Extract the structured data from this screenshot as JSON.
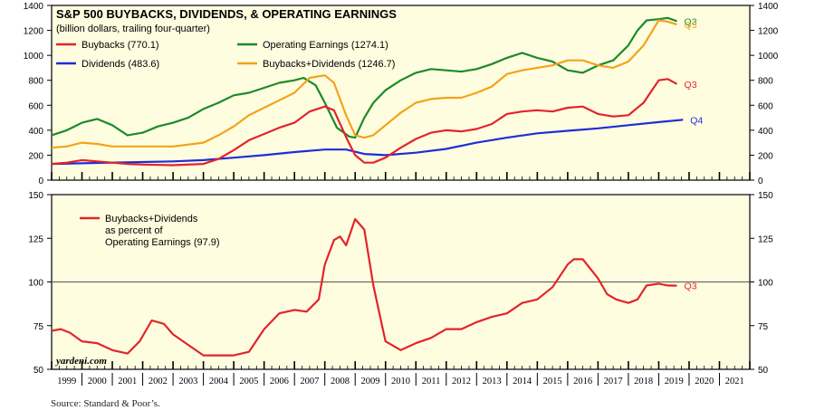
{
  "colors": {
    "panel_bg": "#fffde0",
    "buybacks": "#e3242b",
    "dividends": "#1f2dd6",
    "earnings": "#1c8a2a",
    "combined": "#f2a31b",
    "ratio": "#e3242b"
  },
  "source": "Source: Standard & Poor’s.",
  "chart_data": [
    {
      "type": "line",
      "title": "S&P 500 BUYBACKS, DIVIDENDS, & OPERATING EARNINGS",
      "subtitle": "(billion dollars, trailing four-quarter)",
      "ylim": [
        0,
        1400
      ],
      "yticks": [
        0,
        200,
        400,
        600,
        800,
        1000,
        1200,
        1400
      ],
      "x_range": [
        1999,
        2022
      ],
      "legend_position": "top-left",
      "series": [
        {
          "name": "Buybacks (770.1)",
          "key": "buybacks",
          "end_label": "Q3",
          "x": [
            1999,
            1999.5,
            2000,
            2000.5,
            2001,
            2001.5,
            2002,
            2003,
            2004,
            2004.5,
            2005,
            2005.5,
            2006,
            2006.5,
            2007,
            2007.5,
            2008,
            2008.3,
            2008.75,
            2009,
            2009.3,
            2009.6,
            2010,
            2010.5,
            2011,
            2011.5,
            2012,
            2012.5,
            2013,
            2013.5,
            2014,
            2014.5,
            2015,
            2015.5,
            2016,
            2016.5,
            2017,
            2017.5,
            2018,
            2018.5,
            2019,
            2019.3,
            2019.6
          ],
          "y": [
            130,
            140,
            160,
            150,
            140,
            130,
            125,
            120,
            130,
            170,
            240,
            320,
            370,
            420,
            460,
            550,
            590,
            560,
            320,
            200,
            140,
            140,
            180,
            260,
            330,
            380,
            400,
            390,
            410,
            450,
            530,
            550,
            560,
            550,
            580,
            590,
            530,
            510,
            520,
            620,
            800,
            810,
            770
          ]
        },
        {
          "name": "Dividends (483.6)",
          "key": "dividends",
          "end_label": "Q4",
          "x": [
            1999,
            2000,
            2001,
            2002,
            2003,
            2004,
            2005,
            2006,
            2007,
            2008,
            2008.7,
            2009.3,
            2010,
            2011,
            2012,
            2013,
            2014,
            2015,
            2016,
            2017,
            2018,
            2019,
            2019.8
          ],
          "y": [
            130,
            135,
            140,
            145,
            150,
            160,
            180,
            200,
            225,
            245,
            245,
            210,
            200,
            220,
            250,
            300,
            340,
            375,
            395,
            415,
            440,
            465,
            484
          ]
        },
        {
          "name": "Operating Earnings (1274.1)",
          "key": "earnings",
          "end_label": "Q3",
          "x": [
            1999,
            1999.5,
            2000,
            2000.5,
            2001,
            2001.5,
            2002,
            2002.5,
            2003,
            2003.5,
            2004,
            2004.5,
            2005,
            2005.5,
            2006,
            2006.5,
            2007,
            2007.3,
            2007.7,
            2008,
            2008.4,
            2008.8,
            2009,
            2009.3,
            2009.6,
            2010,
            2010.5,
            2011,
            2011.5,
            2012,
            2012.5,
            2013,
            2013.5,
            2014,
            2014.5,
            2015,
            2015.5,
            2016,
            2016.5,
            2017,
            2017.5,
            2018,
            2018.3,
            2018.6,
            2019,
            2019.3,
            2019.6
          ],
          "y": [
            360,
            400,
            460,
            490,
            440,
            360,
            380,
            430,
            460,
            500,
            570,
            620,
            680,
            700,
            740,
            780,
            800,
            820,
            760,
            620,
            420,
            350,
            340,
            500,
            620,
            720,
            800,
            860,
            890,
            880,
            870,
            890,
            930,
            980,
            1020,
            980,
            950,
            880,
            860,
            920,
            960,
            1080,
            1200,
            1280,
            1290,
            1300,
            1274
          ]
        },
        {
          "name": "Buybacks+Dividends (1246.7)",
          "key": "combined",
          "end_label": "Q3",
          "x": [
            1999,
            1999.5,
            2000,
            2000.5,
            2001,
            2001.5,
            2002,
            2003,
            2004,
            2004.5,
            2005,
            2005.5,
            2006,
            2006.5,
            2007,
            2007.5,
            2008,
            2008.3,
            2008.7,
            2009,
            2009.3,
            2009.6,
            2010,
            2010.5,
            2011,
            2011.5,
            2012,
            2012.5,
            2013,
            2013.5,
            2014,
            2014.5,
            2015,
            2015.5,
            2016,
            2016.5,
            2017,
            2017.5,
            2018,
            2018.5,
            2019,
            2019.3,
            2019.6
          ],
          "y": [
            260,
            270,
            300,
            290,
            270,
            270,
            270,
            270,
            300,
            360,
            430,
            520,
            580,
            640,
            700,
            820,
            840,
            780,
            520,
            360,
            340,
            360,
            440,
            540,
            620,
            650,
            660,
            660,
            700,
            750,
            850,
            880,
            900,
            920,
            960,
            960,
            920,
            900,
            950,
            1080,
            1280,
            1270,
            1247
          ]
        }
      ]
    },
    {
      "type": "line",
      "ylim": [
        50,
        150
      ],
      "yticks": [
        50,
        75,
        100,
        125,
        150
      ],
      "x_range": [
        1999,
        2022
      ],
      "reference_line": 100,
      "legend_lines": [
        "Buybacks+Dividends",
        "as percent of",
        "Operating Earnings (97.9)"
      ],
      "watermark": "yardeni.com",
      "xtick_labels": [
        "1999",
        "2000",
        "2001",
        "2002",
        "2003",
        "2004",
        "2005",
        "2006",
        "2007",
        "2008",
        "2009",
        "2010",
        "2011",
        "2012",
        "2013",
        "2014",
        "2015",
        "2016",
        "2017",
        "2018",
        "2019",
        "2020",
        "2021"
      ],
      "series": [
        {
          "name": "Buybacks+Dividends as percent of Operating Earnings (97.9)",
          "key": "ratio",
          "end_label": "Q3",
          "x": [
            1999,
            1999.3,
            1999.6,
            2000,
            2000.5,
            2001,
            2001.5,
            2001.9,
            2002.3,
            2002.7,
            2003,
            2003.5,
            2004,
            2004.5,
            2005,
            2005.5,
            2006,
            2006.5,
            2007,
            2007.4,
            2007.8,
            2008,
            2008.3,
            2008.5,
            2008.7,
            2009,
            2009.3,
            2009.6,
            2010,
            2010.5,
            2011,
            2011.5,
            2012,
            2012.5,
            2013,
            2013.5,
            2014,
            2014.5,
            2015,
            2015.5,
            2016,
            2016.2,
            2016.5,
            2017,
            2017.3,
            2017.6,
            2018,
            2018.3,
            2018.6,
            2019,
            2019.3,
            2019.6
          ],
          "y": [
            72,
            73,
            71,
            66,
            65,
            61,
            59,
            66,
            78,
            76,
            70,
            64,
            58,
            58,
            58,
            60,
            73,
            82,
            84,
            83,
            90,
            110,
            124,
            126,
            121,
            136,
            130,
            98,
            66,
            61,
            65,
            68,
            73,
            73,
            77,
            80,
            82,
            88,
            90,
            97,
            110,
            113,
            113,
            102,
            93,
            90,
            88,
            90,
            98,
            99,
            98,
            97.9
          ]
        }
      ]
    }
  ]
}
